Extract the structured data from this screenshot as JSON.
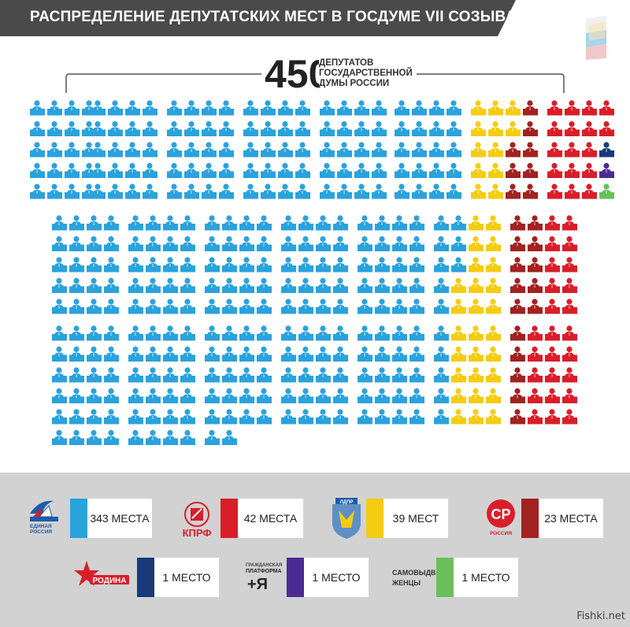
{
  "title": "РАСПРЕДЕЛЕНИЕ ДЕПУТАТСКИХ МЕСТ В ГОСДУМЕ VII СОЗЫВА",
  "total": {
    "number": "450",
    "caption_lines": [
      "ДЕПУТАТОВ",
      "ГОСУДАРСТВЕННОЙ",
      "ДУМЫ РОССИИ"
    ]
  },
  "chart_data": {
    "type": "waffle",
    "total_seats": 450,
    "series": [
      {
        "name": "ЕДИНАЯ РОССИЯ",
        "value": 343,
        "label": "343 МЕСТА",
        "color": "#2aa2dc"
      },
      {
        "name": "ЛДПР",
        "value": 39,
        "label": "39 МЕСТ",
        "color": "#f5cc12"
      },
      {
        "name": "СПРАВЕДЛИВАЯ РОССИЯ",
        "value": 23,
        "label": "23 МЕСТА",
        "color": "#a12220"
      },
      {
        "name": "КПРФ",
        "value": 42,
        "label": "42 МЕСТА",
        "color": "#d91e2a"
      },
      {
        "name": "РОДИНА",
        "value": 1,
        "label": "1 МЕСТО",
        "color": "#183a78"
      },
      {
        "name": "ГРАЖДАНСКАЯ ПЛАТФОРМА",
        "value": 1,
        "label": "1 МЕСТО",
        "color": "#4b2b92"
      },
      {
        "name": "САМОВЫДВИЖЕНЦЫ",
        "value": 1,
        "label": "1 МЕСТО",
        "color": "#6abf5a"
      }
    ]
  },
  "legend": {
    "er": {
      "logo_lines": [
        "ЕДИНАЯ",
        "РОССИЯ"
      ],
      "value": "343 МЕСТА",
      "color": "#2aa2dc"
    },
    "kprf": {
      "logo_text": "КПРФ",
      "value": "42 МЕСТА",
      "color": "#d91e2a"
    },
    "ldpr": {
      "logo_text": "ЛДПР",
      "value": "39 МЕСТ",
      "color": "#f5cc12"
    },
    "sr": {
      "logo_text": "СР",
      "logo_sub": "РОССИЯ",
      "value": "23 МЕСТА",
      "color": "#a12220"
    },
    "rodina": {
      "logo_text": "РОДИНА",
      "value": "1 МЕСТО",
      "color": "#183a78"
    },
    "gp": {
      "logo_lines": [
        "ГРАЖДАНСКАЯ",
        "ПЛАТФОРМА"
      ],
      "logo_text": "+Я",
      "value": "1 МЕСТО",
      "color": "#4b2b92"
    },
    "independents": {
      "logo_lines": [
        "САМОВЫДВИ-",
        "ЖЕНЦЫ"
      ],
      "value": "1 МЕСТО",
      "color": "#6abf5a"
    }
  },
  "watermark": "Fishki.net"
}
